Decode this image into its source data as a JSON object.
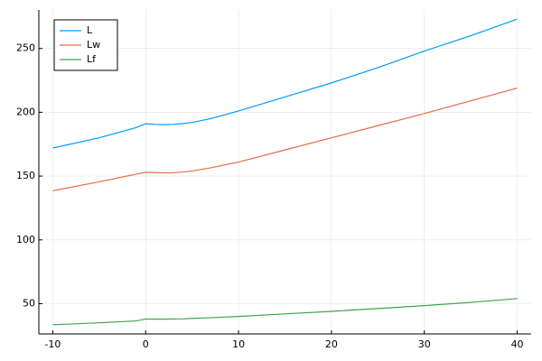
{
  "chart_data": {
    "type": "line",
    "x": [
      -10,
      -5,
      -1,
      0,
      1,
      2,
      3,
      4,
      5,
      7,
      10,
      15,
      20,
      25,
      30,
      35,
      40
    ],
    "series": [
      {
        "name": "L",
        "color": "#009afa",
        "values": [
          172,
          180,
          188,
          191,
          190.5,
          190.3,
          190.5,
          191.2,
          192,
          195,
          201,
          212,
          223,
          235,
          248,
          260,
          273
        ]
      },
      {
        "name": "Lw",
        "color": "#e26f46",
        "values": [
          138.5,
          145.5,
          151.5,
          153,
          152.7,
          152.5,
          152.6,
          153.2,
          154,
          156.5,
          161,
          170.5,
          180,
          189.5,
          199,
          209,
          219
        ]
      },
      {
        "name": "Lf",
        "color": "#3da44d",
        "values": [
          33.5,
          35,
          36.5,
          38,
          37.9,
          37.9,
          38,
          38.1,
          38.5,
          39,
          40,
          42,
          44,
          46.2,
          48.5,
          51,
          54
        ]
      }
    ],
    "xlim": [
      -11.5,
      41.5
    ],
    "xticks": [
      -10,
      0,
      10,
      20,
      30,
      40
    ],
    "ylim": [
      26.3,
      280.2
    ],
    "yticks": [
      50,
      100,
      150,
      200,
      250
    ],
    "grid": true,
    "legend": "top-left"
  }
}
